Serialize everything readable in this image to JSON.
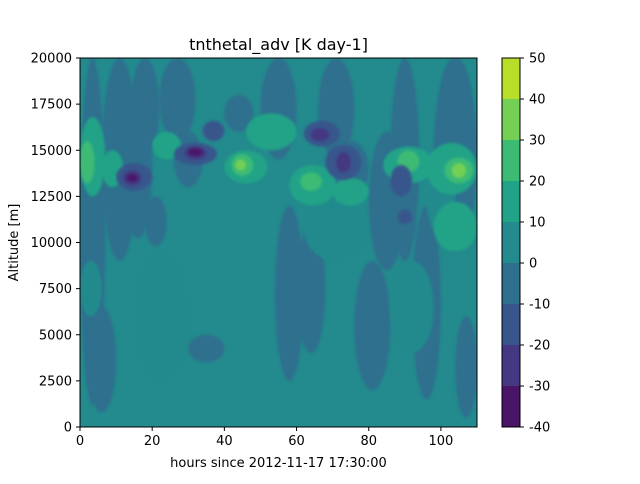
{
  "chart_data": {
    "type": "heatmap",
    "subtype": "filled-contour",
    "title": "tnthetal_adv [K day-1]",
    "xlabel": "hours since 2012-11-17 17:30:00",
    "ylabel": "Altitude [m]",
    "xlim": [
      0,
      110
    ],
    "ylim": [
      0,
      20000
    ],
    "x_ticks": [
      "0",
      "20",
      "40",
      "60",
      "80",
      "100"
    ],
    "y_ticks": [
      "0",
      "2500",
      "5000",
      "7500",
      "10000",
      "12500",
      "15000",
      "17500",
      "20000"
    ],
    "grid": false,
    "colorbar": {
      "levels": [
        -40,
        -30,
        -20,
        -10,
        0,
        10,
        20,
        30,
        40,
        50
      ],
      "tick_labels": [
        "-40",
        "-30",
        "-20",
        "-10",
        "0",
        "10",
        "20",
        "30",
        "40",
        "50"
      ],
      "colors": [
        "#481567",
        "#453781",
        "#39568c",
        "#2d708e",
        "#238a8d",
        "#20a387",
        "#3cbb75",
        "#73d055",
        "#b8de29",
        "#dce319"
      ]
    },
    "background_range": [
      -10,
      0
    ],
    "regions": [
      {
        "level": "0 to 10",
        "x": [
          0,
          110
        ],
        "y": [
          0,
          20000
        ],
        "shape": "broad background region"
      },
      {
        "level": "-10 to 0",
        "x": [
          0,
          32
        ],
        "y": [
          1000,
          20000
        ],
        "shape": "streaky vertical bands"
      },
      {
        "level": "-10 to 0",
        "x": [
          48,
          110
        ],
        "y": [
          1000,
          20000
        ],
        "shape": "streaky vertical bands"
      },
      {
        "level": "-40 to -20",
        "x": [
          28,
          35
        ],
        "y": [
          14500,
          15200
        ],
        "shape": "blob"
      },
      {
        "level": "-40 to -20",
        "x": [
          12,
          16
        ],
        "y": [
          13200,
          13900
        ],
        "shape": "blob"
      },
      {
        "level": "-30 to -10",
        "x": [
          70,
          76
        ],
        "y": [
          13500,
          15200
        ],
        "shape": "blob"
      },
      {
        "level": "-30 to -10",
        "x": [
          63,
          70
        ],
        "y": [
          15200,
          16500
        ],
        "shape": "blob"
      },
      {
        "level": "10 to 30",
        "x": [
          0,
          6
        ],
        "y": [
          13000,
          16500
        ],
        "shape": "blob"
      },
      {
        "level": "10 to 30",
        "x": [
          42,
          50
        ],
        "y": [
          13500,
          14800
        ],
        "shape": "blob"
      },
      {
        "level": "10 to 30",
        "x": [
          60,
          70
        ],
        "y": [
          12500,
          14000
        ],
        "shape": "blob"
      },
      {
        "level": "10 to 30",
        "x": [
          100,
          110
        ],
        "y": [
          13000,
          15000
        ],
        "shape": "blob"
      },
      {
        "level": "30 to 50",
        "x": [
          43,
          46
        ],
        "y": [
          14000,
          14500
        ],
        "shape": "blob"
      },
      {
        "level": "30 to 50",
        "x": [
          103,
          107
        ],
        "y": [
          13500,
          14300
        ],
        "shape": "blob"
      }
    ]
  }
}
